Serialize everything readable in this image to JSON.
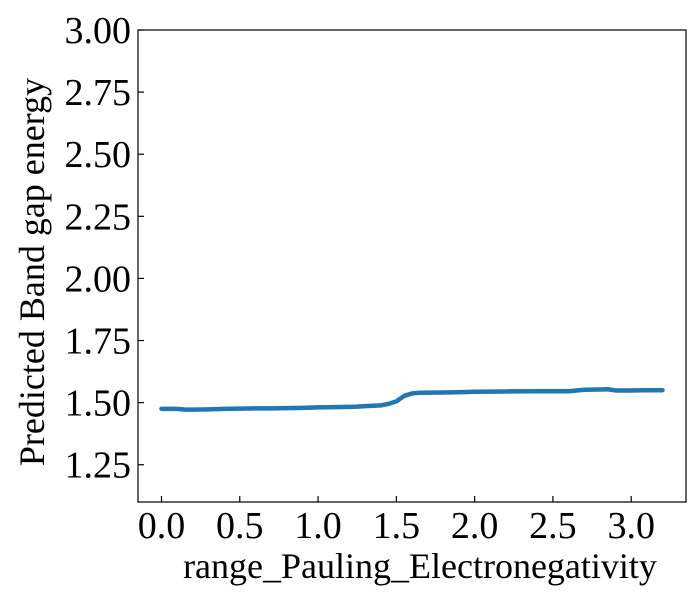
{
  "chart_data": {
    "type": "line",
    "title": "",
    "xlabel": "range_Pauling_Electronegativity",
    "ylabel": "Predicted Band gap energy",
    "xlim": [
      -0.15,
      3.35
    ],
    "ylim": [
      1.1,
      3.0
    ],
    "xticks": [
      0.0,
      0.5,
      1.0,
      1.5,
      2.0,
      2.5,
      3.0
    ],
    "xtick_labels": [
      "0.0",
      "0.5",
      "1.0",
      "1.5",
      "2.0",
      "2.5",
      "3.0"
    ],
    "yticks": [
      1.25,
      1.5,
      1.75,
      2.0,
      2.25,
      2.5,
      2.75,
      3.0
    ],
    "ytick_labels": [
      "1.25",
      "1.50",
      "1.75",
      "2.00",
      "2.25",
      "2.50",
      "2.75",
      "3.00"
    ],
    "grid": false,
    "series": [
      {
        "color": "#1f77b4",
        "x": [
          0.0,
          0.1,
          0.15,
          0.2,
          0.3,
          0.4,
          0.5,
          0.6,
          0.7,
          0.8,
          0.9,
          0.95,
          1.0,
          1.1,
          1.2,
          1.25,
          1.3,
          1.4,
          1.45,
          1.5,
          1.55,
          1.6,
          1.65,
          1.8,
          1.95,
          2.0,
          2.2,
          2.4,
          2.6,
          2.65,
          2.7,
          2.8,
          2.85,
          2.9,
          3.0,
          3.1,
          3.2
        ],
        "y": [
          1.475,
          1.475,
          1.472,
          1.472,
          1.473,
          1.475,
          1.476,
          1.477,
          1.477,
          1.478,
          1.479,
          1.48,
          1.481,
          1.482,
          1.483,
          1.484,
          1.486,
          1.489,
          1.495,
          1.505,
          1.527,
          1.537,
          1.54,
          1.541,
          1.543,
          1.544,
          1.545,
          1.546,
          1.546,
          1.549,
          1.552,
          1.553,
          1.554,
          1.549,
          1.549,
          1.55,
          1.55
        ]
      }
    ]
  }
}
